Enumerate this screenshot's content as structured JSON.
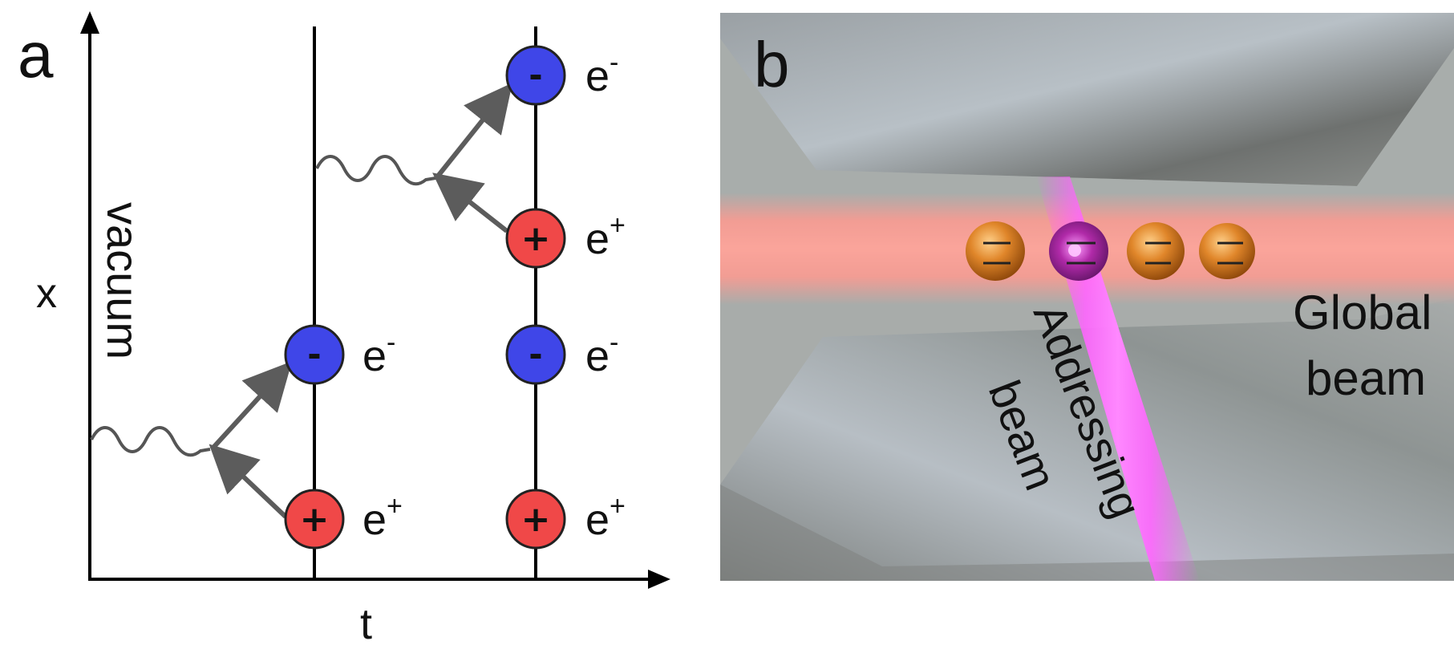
{
  "panel_a": {
    "label": "a",
    "x_axis_label": "t",
    "y_axis_label": "x",
    "region_label": "vacuum",
    "minus_sign": "-",
    "plus_sign": "+",
    "particles": [
      {
        "name": "electron",
        "base": "e",
        "sup": "-",
        "sign": "-"
      },
      {
        "name": "positron",
        "base": "e",
        "sup": "+",
        "sign": "+"
      }
    ]
  },
  "panel_b": {
    "label": "b",
    "addressing_beam_line1": "Addressing",
    "addressing_beam_line2": "beam",
    "global_beam_line1": "Global",
    "global_beam_line2": "beam"
  },
  "colors": {
    "electron": "#3f46e8",
    "positron": "#f04848",
    "arrow": "#5c5c5c",
    "global_beam": "#ff9a90",
    "addressing_beam": "#ff55ff",
    "ion": "#d8781e",
    "addressed_ion": "#8a1a9a"
  }
}
